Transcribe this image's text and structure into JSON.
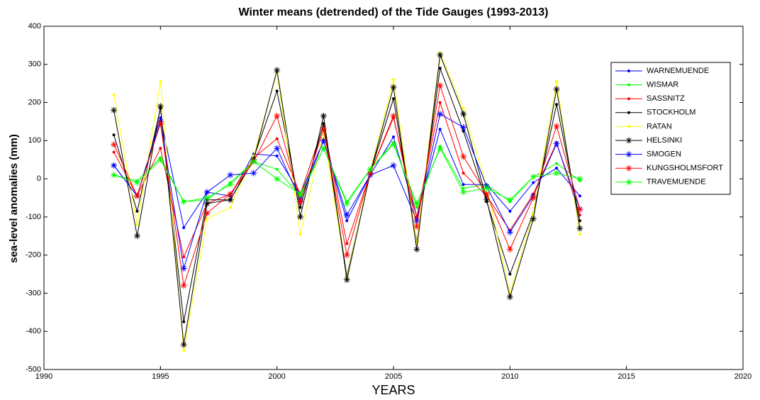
{
  "chart_data": {
    "type": "line",
    "title": "Winter means (detrended) of the Tide Gauges (1993-2013)",
    "x_label": "YEARS",
    "y_label": "sea-level anomalies (mm)",
    "x": [
      1993,
      1994,
      1995,
      1996,
      1997,
      1998,
      1999,
      2000,
      2001,
      2002,
      2003,
      2004,
      2005,
      2006,
      2007,
      2008,
      2009,
      2010,
      2011,
      2012,
      2013
    ],
    "xlim": [
      1990,
      2020
    ],
    "xticks": [
      1990,
      1995,
      2000,
      2005,
      2010,
      2015,
      2020
    ],
    "ylim": [
      -500,
      400
    ],
    "yticks": [
      -500,
      -400,
      -300,
      -200,
      -100,
      0,
      100,
      200,
      300,
      400
    ],
    "grid": false,
    "legend": "upper right",
    "series": [
      {
        "name": "WARNEMUENDE",
        "color": "#0000ff",
        "marker": ".",
        "values": [
          35,
          -45,
          160,
          -128,
          -35,
          -45,
          65,
          60,
          -40,
          100,
          -110,
          10,
          110,
          -100,
          130,
          -15,
          -15,
          -85,
          -10,
          28,
          -45
        ]
      },
      {
        "name": "WISMAR",
        "color": "#00ff00",
        "marker": ".",
        "values": [
          10,
          -5,
          55,
          -60,
          -55,
          -10,
          45,
          25,
          -45,
          80,
          -60,
          25,
          95,
          -75,
          85,
          -25,
          -15,
          -60,
          5,
          40,
          -5
        ]
      },
      {
        "name": "SASSNITZ",
        "color": "#ff0000",
        "marker": ".",
        "values": [
          70,
          -45,
          80,
          -205,
          -65,
          -40,
          55,
          105,
          -40,
          140,
          -170,
          15,
          160,
          -100,
          200,
          15,
          -45,
          -135,
          -40,
          95,
          -95
        ]
      },
      {
        "name": "STOCKHOLM",
        "color": "#000000",
        "marker": ".",
        "values": [
          115,
          -85,
          185,
          -375,
          -55,
          -55,
          55,
          230,
          -75,
          145,
          -255,
          15,
          210,
          -165,
          290,
          125,
          -60,
          -250,
          -90,
          195,
          -110
        ]
      },
      {
        "name": "RATAN",
        "color": "#ffff00",
        "marker": ".",
        "values": [
          220,
          -120,
          255,
          -450,
          -105,
          -75,
          60,
          280,
          -145,
          120,
          -260,
          20,
          260,
          -170,
          330,
          185,
          -20,
          -300,
          -90,
          255,
          -145
        ]
      },
      {
        "name": "HELSINKI",
        "color": "#000000",
        "marker": "*",
        "values": [
          180,
          -150,
          190,
          -435,
          -65,
          -55,
          50,
          285,
          -100,
          165,
          -265,
          15,
          240,
          -185,
          325,
          170,
          -55,
          -310,
          -105,
          235,
          -130
        ]
      },
      {
        "name": "SMOGEN",
        "color": "#0000ff",
        "marker": "*",
        "values": [
          35,
          -45,
          150,
          -235,
          -35,
          10,
          15,
          80,
          -55,
          100,
          -95,
          10,
          35,
          -110,
          170,
          135,
          -20,
          -140,
          -45,
          92,
          -80
        ]
      },
      {
        "name": "KUNGSHOLMSFORT",
        "color": "#ff0000",
        "marker": "*",
        "values": [
          90,
          -45,
          145,
          -280,
          -90,
          -40,
          45,
          165,
          -60,
          130,
          -200,
          15,
          165,
          -125,
          245,
          58,
          -40,
          -185,
          -50,
          138,
          -80
        ]
      },
      {
        "name": "TRAVEMUENDE",
        "color": "#00ff00",
        "marker": "*",
        "values": [
          10,
          -10,
          50,
          -60,
          -50,
          -15,
          45,
          0,
          -40,
          80,
          -65,
          25,
          90,
          -65,
          80,
          -35,
          -25,
          -55,
          5,
          15,
          0
        ]
      }
    ]
  }
}
